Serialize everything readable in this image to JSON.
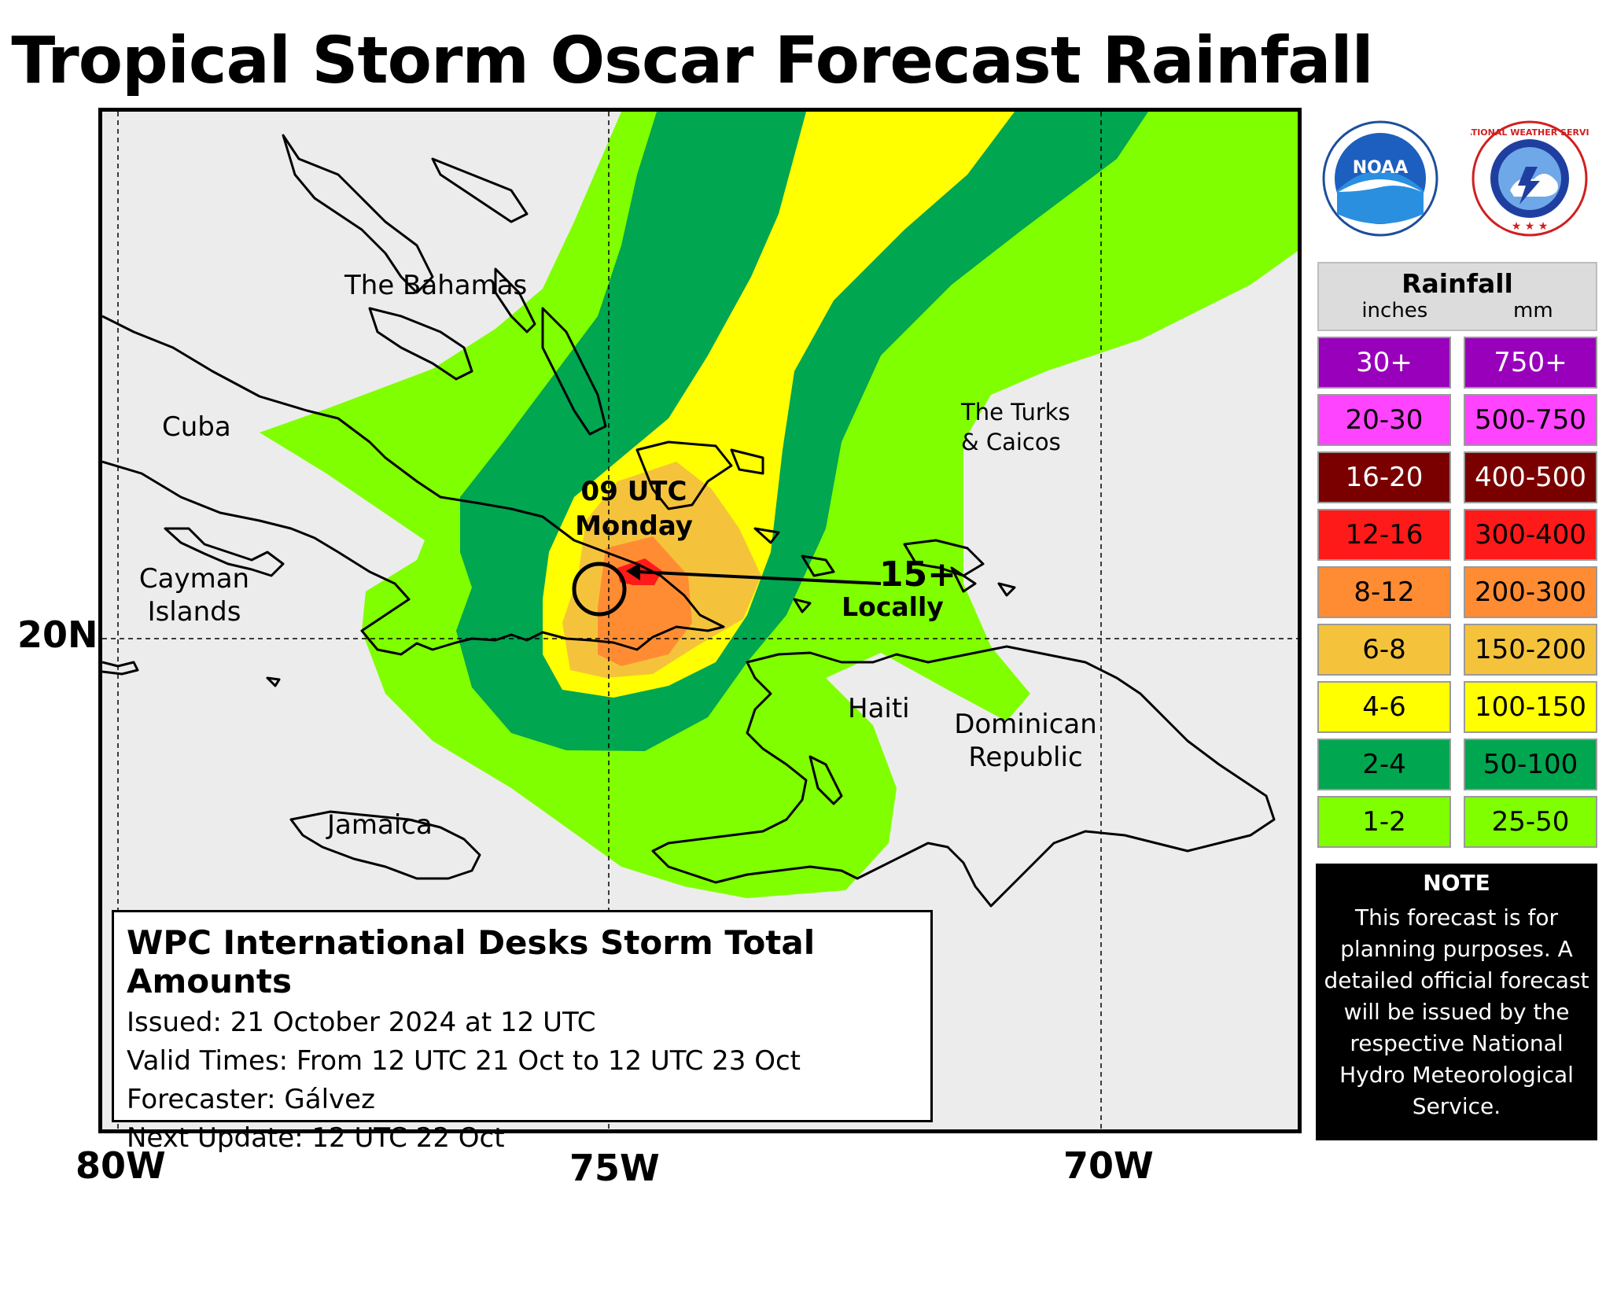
{
  "title": "Tropical Storm Oscar Forecast Rainfall",
  "axes": {
    "lon_labels": [
      "80W",
      "75W",
      "70W"
    ],
    "lat_labels": [
      "20N"
    ]
  },
  "places": {
    "bahamas": "The Bahamas",
    "cuba": "Cuba",
    "cayman": [
      "Cayman",
      "Islands"
    ],
    "turks": [
      "The Turks",
      "& Caicos"
    ],
    "haiti": "Haiti",
    "dominican": [
      "Dominican",
      "Republic"
    ],
    "jamaica": "Jamaica"
  },
  "annotations": {
    "time": [
      "09 UTC",
      "Monday"
    ],
    "max_amount": "15+",
    "max_note": "Locally"
  },
  "info": {
    "heading": "WPC International Desks Storm Total Amounts",
    "issued": "Issued:  21 October 2024 at 12 UTC",
    "valid": "Valid Times:  From 12 UTC 21 Oct  to  12 UTC 23 Oct",
    "forecaster": "Forecaster:  Gálvez",
    "next_update": "Next Update: 12 UTC 22 Oct"
  },
  "logos": {
    "noaa": "NOAA",
    "nws_text": "NATIONAL WEATHER SERVICE"
  },
  "legend": {
    "title": "Rainfall",
    "units": [
      "inches",
      "mm"
    ],
    "rows": [
      {
        "inches": "30+",
        "mm": "750+",
        "color": "#9900bb",
        "text": "#ffffff"
      },
      {
        "inches": "20-30",
        "mm": "500-750",
        "color": "#ff44ff",
        "text": "#000000"
      },
      {
        "inches": "16-20",
        "mm": "400-500",
        "color": "#7a0000",
        "text": "#ffffff"
      },
      {
        "inches": "12-16",
        "mm": "300-400",
        "color": "#ff1a1a",
        "text": "#000000"
      },
      {
        "inches": "8-12",
        "mm": "200-300",
        "color": "#ff8c33",
        "text": "#000000"
      },
      {
        "inches": "6-8",
        "mm": "150-200",
        "color": "#f5c33b",
        "text": "#000000"
      },
      {
        "inches": "4-6",
        "mm": "100-150",
        "color": "#ffff00",
        "text": "#000000"
      },
      {
        "inches": "2-4",
        "mm": "50-100",
        "color": "#00a650",
        "text": "#000000"
      },
      {
        "inches": "1-2",
        "mm": "25-50",
        "color": "#80ff00",
        "text": "#000000"
      }
    ]
  },
  "note": {
    "heading": "NOTE",
    "lines": [
      "This forecast is for",
      "planning purposes. A",
      "detailed official forecast",
      "will be issued by the",
      "respective National",
      "Hydro Meteorological",
      "Service."
    ]
  }
}
